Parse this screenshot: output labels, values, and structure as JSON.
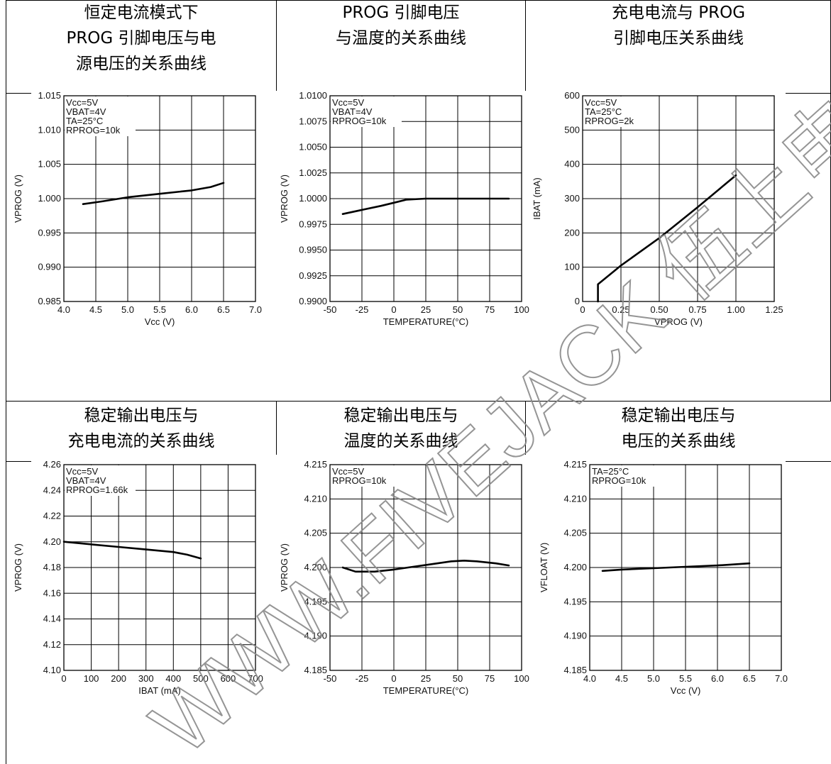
{
  "watermark": "WWW.FIVEJACK 伍上电子科技",
  "titles": [
    [
      "恒定电流模式下",
      "PROG 引脚电压与电",
      "源电压的关系曲线"
    ],
    [
      "PROG 引脚电压",
      "与温度的关系曲线"
    ],
    [
      "充电电流与 PROG",
      "引脚电压关系曲线"
    ],
    [
      "稳定输出电压与",
      "充电电流的关系曲线"
    ],
    [
      "稳定输出电压与",
      "温度的关系曲线"
    ],
    [
      "稳定输出电压与",
      "电压的关系曲线"
    ]
  ],
  "chart_data": [
    {
      "type": "line",
      "xlabel": "Vcc (V)",
      "ylabel": "VPROG (V)",
      "xlim": [
        4.0,
        7.0
      ],
      "ylim": [
        0.985,
        1.015
      ],
      "xticks": [
        "4.0",
        "4.5",
        "5.0",
        "5.5",
        "6.0",
        "6.5",
        "7.0"
      ],
      "yticks": [
        "0.985",
        "0.990",
        "0.995",
        "1.000",
        "1.005",
        "1.010",
        "1.015"
      ],
      "annotations": [
        "Vcc=5V",
        "VBAT=4V",
        "TA=25°C",
        "RPROG=10k"
      ],
      "grid": true,
      "series": [
        {
          "x": [
            4.3,
            4.6,
            5.0,
            5.5,
            6.0,
            6.3,
            6.5
          ],
          "y": [
            0.9992,
            0.9996,
            1.0002,
            1.0007,
            1.0012,
            1.0017,
            1.0023
          ]
        }
      ]
    },
    {
      "type": "line",
      "xlabel": "TEMPERATURE(°C)",
      "ylabel": "VPROG (V)",
      "xlim": [
        -50,
        100
      ],
      "ylim": [
        0.99,
        1.01
      ],
      "xticks": [
        "-50",
        "-25",
        "0",
        "25",
        "50",
        "75",
        "100"
      ],
      "yticks": [
        "0.9900",
        "0.9925",
        "0.9950",
        "0.9975",
        "1.0000",
        "1.0025",
        "1.0050",
        "1.0075",
        "1.0100"
      ],
      "annotations": [
        "Vcc=5V",
        "VBAT=4V",
        "RPROG=10k"
      ],
      "grid": true,
      "series": [
        {
          "x": [
            -40,
            -25,
            -10,
            0,
            10,
            25,
            50,
            75,
            90
          ],
          "y": [
            0.9985,
            0.9989,
            0.9993,
            0.9996,
            0.9999,
            1.0,
            1.0,
            1.0,
            1.0
          ]
        }
      ]
    },
    {
      "type": "line",
      "xlabel": "VPROG (V)",
      "ylabel": "IBAT (mA)",
      "xlim": [
        0,
        1.25
      ],
      "ylim": [
        0,
        600
      ],
      "xticks": [
        "0",
        "0.25",
        "0.50",
        "0.75",
        "1.00",
        "1.25"
      ],
      "yticks": [
        "0",
        "100",
        "200",
        "300",
        "400",
        "500",
        "600"
      ],
      "annotations": [
        "Vcc=5V",
        "TA=25°C",
        "RPROG=2k"
      ],
      "grid": true,
      "series": [
        {
          "x": [
            0.1,
            0.1,
            0.25,
            0.5,
            0.75,
            1.0
          ],
          "y": [
            0,
            50,
            105,
            185,
            275,
            368
          ]
        }
      ]
    },
    {
      "type": "line",
      "xlabel": "IBAT (mA)",
      "ylabel": "VPROG (V)",
      "xlim": [
        0,
        700
      ],
      "ylim": [
        4.1,
        4.26
      ],
      "xticks": [
        "0",
        "100",
        "200",
        "300",
        "400",
        "500",
        "600",
        "700"
      ],
      "yticks": [
        "4.10",
        "4.12",
        "4.14",
        "4.16",
        "4.18",
        "4.20",
        "4.22",
        "4.24",
        "4.26"
      ],
      "annotations": [
        "Vcc=5V",
        "VBAT=4V",
        "RPROG=1.66k"
      ],
      "grid": true,
      "series": [
        {
          "x": [
            0,
            100,
            200,
            300,
            400,
            450,
            500
          ],
          "y": [
            4.2,
            4.198,
            4.196,
            4.194,
            4.192,
            4.19,
            4.187
          ]
        }
      ]
    },
    {
      "type": "line",
      "xlabel": "TEMPERATURE(°C)",
      "ylabel": "VPROG (V)",
      "xlim": [
        -50,
        100
      ],
      "ylim": [
        4.185,
        4.215
      ],
      "xticks": [
        "-50",
        "-25",
        "0",
        "25",
        "50",
        "75",
        "100"
      ],
      "yticks": [
        "4.185",
        "4.190",
        "4.195",
        "4.200",
        "4.205",
        "4.210",
        "4.215"
      ],
      "annotations": [
        "Vcc=5V",
        "RPROG=10k"
      ],
      "grid": true,
      "series": [
        {
          "x": [
            -40,
            -30,
            -15,
            0,
            15,
            30,
            45,
            55,
            65,
            80,
            90
          ],
          "y": [
            4.2,
            4.1994,
            4.1994,
            4.1997,
            4.2001,
            4.2005,
            4.2009,
            4.201,
            4.2009,
            4.2006,
            4.2003
          ]
        }
      ]
    },
    {
      "type": "line",
      "xlabel": "Vcc (V)",
      "ylabel": "VFLOAT (V)",
      "xlim": [
        4.0,
        7.0
      ],
      "ylim": [
        4.185,
        4.215
      ],
      "xticks": [
        "4.0",
        "4.5",
        "5.0",
        "5.5",
        "6.0",
        "6.5",
        "7.0"
      ],
      "yticks": [
        "4.185",
        "4.190",
        "4.195",
        "4.200",
        "4.205",
        "4.210",
        "4.215"
      ],
      "annotations": [
        "TA=25°C",
        "RPROG=10k"
      ],
      "grid": true,
      "series": [
        {
          "x": [
            4.2,
            4.5,
            5.0,
            5.5,
            6.0,
            6.5
          ],
          "y": [
            4.1995,
            4.1997,
            4.1999,
            4.2001,
            4.2003,
            4.2006
          ]
        }
      ]
    }
  ]
}
